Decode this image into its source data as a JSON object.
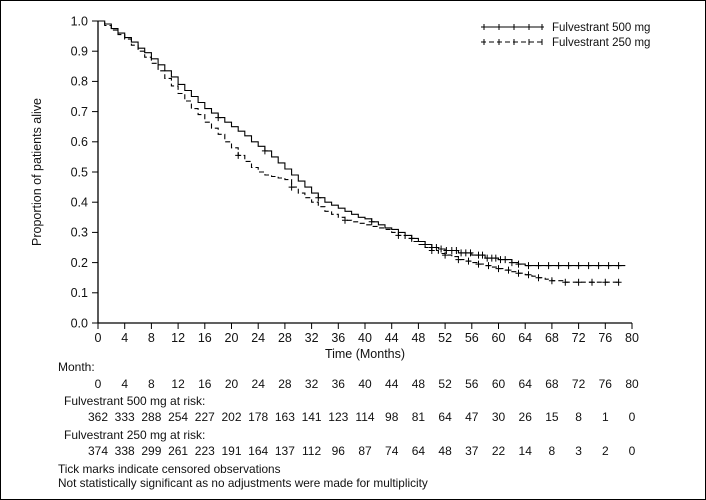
{
  "chart_data": {
    "type": "line",
    "subtype": "kaplan-meier-step",
    "title": "",
    "xlabel": "Time (Months)",
    "ylabel": "Proportion of patients alive",
    "xlim": [
      0,
      80
    ],
    "ylim": [
      0,
      1
    ],
    "xticks": [
      0,
      4,
      8,
      12,
      16,
      20,
      24,
      28,
      32,
      36,
      40,
      44,
      48,
      52,
      56,
      60,
      64,
      68,
      72,
      76,
      80
    ],
    "yticks": [
      0,
      0.1,
      0.2,
      0.3,
      0.4,
      0.5,
      0.6,
      0.7,
      0.8,
      0.9,
      1
    ],
    "grid": false,
    "legend_position": "top-right",
    "line_color": "#000000",
    "series": [
      {
        "name": "Fulvestrant 500 mg",
        "line_style": "solid",
        "points": [
          [
            0,
            1.0
          ],
          [
            1,
            0.99
          ],
          [
            2,
            0.975
          ],
          [
            3,
            0.96
          ],
          [
            4,
            0.945
          ],
          [
            5,
            0.93
          ],
          [
            6,
            0.91
          ],
          [
            7,
            0.895
          ],
          [
            8,
            0.875
          ],
          [
            9,
            0.855
          ],
          [
            10,
            0.835
          ],
          [
            11,
            0.815
          ],
          [
            12,
            0.79
          ],
          [
            13,
            0.77
          ],
          [
            14,
            0.75
          ],
          [
            15,
            0.73
          ],
          [
            16,
            0.71
          ],
          [
            17,
            0.695
          ],
          [
            18,
            0.68
          ],
          [
            19,
            0.665
          ],
          [
            20,
            0.65
          ],
          [
            21,
            0.635
          ],
          [
            22,
            0.62
          ],
          [
            23,
            0.6
          ],
          [
            24,
            0.585
          ],
          [
            25,
            0.57
          ],
          [
            26,
            0.55
          ],
          [
            27,
            0.53
          ],
          [
            28,
            0.51
          ],
          [
            29,
            0.49
          ],
          [
            30,
            0.47
          ],
          [
            31,
            0.45
          ],
          [
            32,
            0.43
          ],
          [
            33,
            0.415
          ],
          [
            34,
            0.4
          ],
          [
            35,
            0.39
          ],
          [
            36,
            0.38
          ],
          [
            37,
            0.37
          ],
          [
            38,
            0.36
          ],
          [
            39,
            0.35
          ],
          [
            40,
            0.345
          ],
          [
            41,
            0.335
          ],
          [
            42,
            0.325
          ],
          [
            43,
            0.315
          ],
          [
            44,
            0.31
          ],
          [
            45,
            0.3
          ],
          [
            46,
            0.29
          ],
          [
            47,
            0.28
          ],
          [
            48,
            0.27
          ],
          [
            49,
            0.26
          ],
          [
            50,
            0.25
          ],
          [
            51,
            0.245
          ],
          [
            52,
            0.24
          ],
          [
            54,
            0.232
          ],
          [
            56,
            0.225
          ],
          [
            58,
            0.215
          ],
          [
            60,
            0.21
          ],
          [
            62,
            0.2
          ],
          [
            63,
            0.195
          ],
          [
            64,
            0.19
          ],
          [
            79,
            0.19
          ]
        ],
        "censor_times": [
          18,
          25,
          33,
          41,
          47,
          49,
          50,
          50.7,
          51.4,
          52.2,
          53,
          53.7,
          54.4,
          55.1,
          55.8,
          57,
          57.6,
          58.3,
          59,
          59.6,
          60.3,
          61,
          62,
          63,
          64.5,
          66,
          67.5,
          69,
          70.5,
          72,
          73.5,
          75,
          76.5,
          78
        ]
      },
      {
        "name": "Fulvestrant 250 mg",
        "line_style": "dashed",
        "points": [
          [
            0,
            1.0
          ],
          [
            1,
            0.985
          ],
          [
            2,
            0.97
          ],
          [
            3,
            0.955
          ],
          [
            4,
            0.94
          ],
          [
            5,
            0.92
          ],
          [
            6,
            0.9
          ],
          [
            7,
            0.88
          ],
          [
            8,
            0.86
          ],
          [
            9,
            0.835
          ],
          [
            10,
            0.81
          ],
          [
            11,
            0.785
          ],
          [
            12,
            0.76
          ],
          [
            13,
            0.735
          ],
          [
            14,
            0.71
          ],
          [
            15,
            0.69
          ],
          [
            16,
            0.665
          ],
          [
            17,
            0.645
          ],
          [
            18,
            0.625
          ],
          [
            19,
            0.6
          ],
          [
            20,
            0.58
          ],
          [
            21,
            0.555
          ],
          [
            22,
            0.535
          ],
          [
            23,
            0.515
          ],
          [
            24,
            0.5
          ],
          [
            25,
            0.49
          ],
          [
            26,
            0.485
          ],
          [
            27,
            0.48
          ],
          [
            28,
            0.475
          ],
          [
            29,
            0.45
          ],
          [
            30,
            0.43
          ],
          [
            31,
            0.415
          ],
          [
            32,
            0.4
          ],
          [
            33,
            0.385
          ],
          [
            34,
            0.37
          ],
          [
            35,
            0.36
          ],
          [
            36,
            0.35
          ],
          [
            37,
            0.34
          ],
          [
            38,
            0.335
          ],
          [
            39,
            0.33
          ],
          [
            40,
            0.325
          ],
          [
            41,
            0.32
          ],
          [
            42,
            0.315
          ],
          [
            43,
            0.31
          ],
          [
            44,
            0.3
          ],
          [
            45,
            0.29
          ],
          [
            46,
            0.28
          ],
          [
            47,
            0.27
          ],
          [
            48,
            0.26
          ],
          [
            49,
            0.25
          ],
          [
            50,
            0.24
          ],
          [
            51,
            0.23
          ],
          [
            52,
            0.225
          ],
          [
            53,
            0.22
          ],
          [
            54,
            0.21
          ],
          [
            55,
            0.205
          ],
          [
            56,
            0.2
          ],
          [
            57,
            0.195
          ],
          [
            58,
            0.19
          ],
          [
            59,
            0.185
          ],
          [
            60,
            0.18
          ],
          [
            61,
            0.175
          ],
          [
            62,
            0.17
          ],
          [
            63,
            0.165
          ],
          [
            64,
            0.16
          ],
          [
            65,
            0.155
          ],
          [
            66,
            0.15
          ],
          [
            67,
            0.145
          ],
          [
            68,
            0.14
          ],
          [
            70,
            0.135
          ],
          [
            78,
            0.135
          ]
        ],
        "censor_times": [
          21,
          29,
          37,
          45,
          50,
          52,
          54,
          55.5,
          57,
          58.5,
          60,
          61.5,
          63,
          64.5,
          66,
          68,
          70,
          72,
          74,
          76,
          78
        ]
      }
    ],
    "risk_table": {
      "month_label": "Month:",
      "months": [
        0,
        4,
        8,
        12,
        16,
        20,
        24,
        28,
        32,
        36,
        40,
        44,
        48,
        52,
        56,
        60,
        64,
        68,
        72,
        76,
        80
      ],
      "rows": [
        {
          "label": "Fulvestrant 500 mg at risk:",
          "values": [
            362,
            333,
            288,
            254,
            227,
            202,
            178,
            163,
            141,
            123,
            114,
            98,
            81,
            64,
            47,
            30,
            26,
            15,
            8,
            1,
            0
          ]
        },
        {
          "label": "Fulvestrant 250 mg at risk:",
          "values": [
            374,
            338,
            299,
            261,
            223,
            191,
            164,
            137,
            112,
            96,
            87,
            74,
            64,
            48,
            37,
            22,
            14,
            8,
            3,
            2,
            0
          ]
        }
      ]
    },
    "footnotes": [
      "Tick marks indicate censored observations",
      "Not statistically significant as no adjustments were made for multiplicity"
    ]
  }
}
